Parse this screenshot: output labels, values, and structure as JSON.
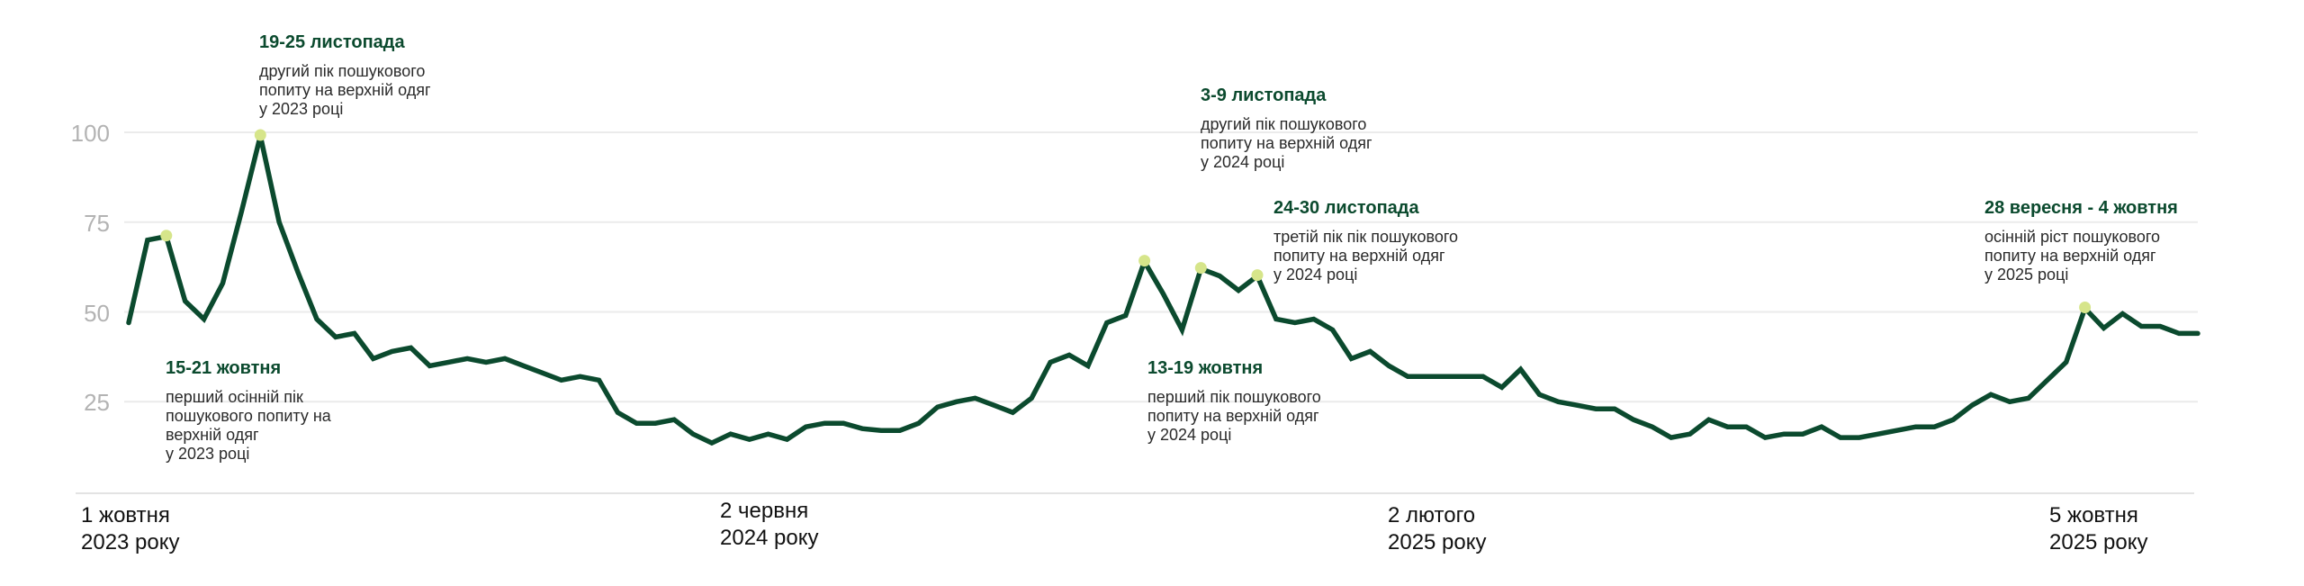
{
  "chart_data": {
    "type": "line",
    "title": "",
    "xlabel": "",
    "ylabel": "",
    "ylim": [
      0,
      100
    ],
    "yticks": [
      "25",
      "50",
      "75",
      "100"
    ],
    "grid": true,
    "x_tick_labels": [
      {
        "week_index": 0,
        "line1": "1 жовтня",
        "line2": "2023 року"
      },
      {
        "week_index": 35,
        "line1": "2 червня",
        "line2": "2024 року"
      },
      {
        "week_index": 70,
        "line1": "2 лютого",
        "line2": "2025 року"
      },
      {
        "week_index": 105,
        "line1": "5 жовтня",
        "line2": "2025 року"
      }
    ],
    "x_start": "1 жовтня 2023",
    "x_interval": "week",
    "series": [
      {
        "values": [
          47,
          70,
          71,
          53,
          48,
          58,
          78,
          99,
          75,
          61,
          48,
          43,
          44,
          37,
          39,
          40,
          35,
          36,
          37,
          36,
          37,
          35,
          33,
          31,
          32,
          31,
          22,
          19,
          19,
          20,
          16,
          13.5,
          16,
          14.5,
          16,
          14.5,
          18,
          19,
          19,
          17.5,
          17,
          17,
          19,
          23.5,
          25,
          26,
          24,
          22,
          26,
          36,
          38,
          35,
          47,
          49,
          64,
          55,
          45,
          62,
          60,
          56,
          60,
          48,
          47,
          48,
          45,
          37,
          39,
          35,
          32,
          32,
          32,
          32,
          32,
          29,
          34,
          27,
          25,
          24,
          23,
          23,
          20,
          18,
          15,
          16,
          20,
          18,
          18,
          15,
          16,
          16,
          18,
          15,
          15,
          16,
          17,
          18,
          18,
          20,
          24,
          27,
          25,
          26,
          31,
          36,
          51,
          45.5,
          49.5,
          46,
          46,
          44,
          44
        ],
        "color": "#0b4a2e"
      }
    ],
    "highlight_color": "#d6e58a",
    "annotations": [
      {
        "week_index": 2,
        "title": "15-21 жовтня",
        "text": "перший осінній пік\nпошукового попиту на\nверхній одяг\nу 2023 році"
      },
      {
        "week_index": 7,
        "title": "19-25 листопада",
        "text": "другий пік пошукового\nпопиту на верхній одяг\nу 2023 році"
      },
      {
        "week_index": 54,
        "title": "13-19 жовтня",
        "text": "перший пік пошукового\nпопиту на верхній одяг\nу 2024 році"
      },
      {
        "week_index": 57,
        "title": "3-9 листопада",
        "text": "другий пік пошукового\nпопиту на верхній одяг\nу 2024 році"
      },
      {
        "week_index": 60,
        "title": "24-30 листопада",
        "text": "третій пік пік пошукового\nпопиту на верхній одяг\nу 2024 році"
      },
      {
        "week_index": 104,
        "title": "28 вересня - 4 жовтня",
        "text": "осінній ріст пошукового\nпопиту на верхній одяг\nу 2025 році"
      }
    ]
  }
}
